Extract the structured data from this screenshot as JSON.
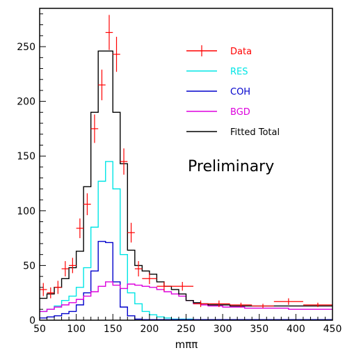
{
  "chart_data": {
    "type": "line",
    "xlabel": "mππ",
    "xlim": [
      50,
      450
    ],
    "ylim": [
      0,
      285
    ],
    "x_ticks": [
      50,
      100,
      150,
      200,
      250,
      300,
      350,
      400,
      450
    ],
    "y_ticks": [
      0,
      50,
      100,
      150,
      200,
      250
    ],
    "annotation": "Preliminary",
    "legend_position": "top-right",
    "bin_edges": [
      50,
      60,
      70,
      80,
      90,
      100,
      110,
      120,
      130,
      140,
      150,
      160,
      170,
      180,
      190,
      200,
      210,
      220,
      230,
      240,
      250,
      260,
      270,
      280,
      290,
      300,
      310,
      320,
      330,
      340,
      350,
      360,
      370,
      380,
      390,
      400,
      410,
      420,
      430,
      440,
      450
    ],
    "series": [
      {
        "name": "RES",
        "kind": "histogram",
        "color": "#00e5e5",
        "values": [
          8,
          10,
          13,
          18,
          22,
          30,
          48,
          85,
          127,
          145,
          120,
          60,
          25,
          15,
          8,
          5,
          3,
          2,
          1,
          1,
          1,
          0.5,
          0.5,
          0.5,
          0.5,
          0.5,
          0.5,
          0.5,
          0.5,
          0.5,
          0.5,
          0.5,
          0.5,
          0.5,
          0.5,
          0.5,
          0.5,
          0.5,
          0.5,
          0.5
        ]
      },
      {
        "name": "COH",
        "kind": "histogram",
        "color": "#0000cc",
        "values": [
          2,
          3,
          4,
          6,
          8,
          14,
          25,
          45,
          72,
          71,
          35,
          12,
          4,
          1,
          0.5,
          0.5,
          0.5,
          0.5,
          0.5,
          0.5,
          0.5,
          0.5,
          0.5,
          0.5,
          0.5,
          0.5,
          0.5,
          0.5,
          0.5,
          0.5,
          0.5,
          0.5,
          0.5,
          0.5,
          0.5,
          0.5,
          0.5,
          0.5,
          0.5,
          0.5
        ]
      },
      {
        "name": "BGD",
        "kind": "histogram",
        "color": "#dd00dd",
        "values": [
          8,
          10,
          12,
          14,
          16,
          19,
          22,
          26,
          31,
          35,
          32,
          29,
          33,
          32,
          31,
          30,
          28,
          26,
          24,
          22,
          18,
          15,
          14,
          13,
          13,
          12,
          12,
          12,
          11,
          11,
          11,
          11,
          11,
          11,
          10,
          10,
          10,
          10,
          10,
          10
        ]
      },
      {
        "name": "Fitted Total",
        "kind": "histogram",
        "color": "#000000",
        "values": [
          20,
          24,
          30,
          38,
          48,
          63,
          122,
          190,
          246,
          246,
          190,
          143,
          64,
          50,
          45,
          42,
          35,
          31,
          28,
          24,
          18,
          16,
          15,
          14,
          14,
          14,
          13,
          13,
          13,
          13,
          13,
          13,
          13,
          13,
          13,
          13,
          13,
          13,
          13,
          13
        ]
      },
      {
        "name": "Data",
        "kind": "points",
        "color": "#ff0000",
        "points": [
          {
            "x": 55,
            "y": 28,
            "xerr": 5,
            "yerr": 6
          },
          {
            "x": 65,
            "y": 25,
            "xerr": 5,
            "yerr": 5
          },
          {
            "x": 75,
            "y": 30,
            "xerr": 5,
            "yerr": 6
          },
          {
            "x": 85,
            "y": 47,
            "xerr": 5,
            "yerr": 7
          },
          {
            "x": 95,
            "y": 50,
            "xerr": 5,
            "yerr": 7
          },
          {
            "x": 105,
            "y": 84,
            "xerr": 5,
            "yerr": 9
          },
          {
            "x": 115,
            "y": 106,
            "xerr": 5,
            "yerr": 10
          },
          {
            "x": 125,
            "y": 175,
            "xerr": 5,
            "yerr": 13
          },
          {
            "x": 135,
            "y": 215,
            "xerr": 5,
            "yerr": 14
          },
          {
            "x": 145,
            "y": 263,
            "xerr": 5,
            "yerr": 16
          },
          {
            "x": 155,
            "y": 243,
            "xerr": 5,
            "yerr": 16
          },
          {
            "x": 165,
            "y": 145,
            "xerr": 5,
            "yerr": 12
          },
          {
            "x": 175,
            "y": 80,
            "xerr": 5,
            "yerr": 9
          },
          {
            "x": 185,
            "y": 47,
            "xerr": 5,
            "yerr": 7
          },
          {
            "x": 200,
            "y": 38,
            "xerr": 10,
            "yerr": 5
          },
          {
            "x": 220,
            "y": 31,
            "xerr": 10,
            "yerr": 4
          },
          {
            "x": 245,
            "y": 31,
            "xerr": 15,
            "yerr": 4
          },
          {
            "x": 270,
            "y": 15,
            "xerr": 10,
            "yerr": 3
          },
          {
            "x": 295,
            "y": 15,
            "xerr": 15,
            "yerr": 3
          },
          {
            "x": 325,
            "y": 14,
            "xerr": 15,
            "yerr": 2
          },
          {
            "x": 355,
            "y": 13,
            "xerr": 15,
            "yerr": 2
          },
          {
            "x": 390,
            "y": 17,
            "xerr": 20,
            "yerr": 3
          },
          {
            "x": 430,
            "y": 14,
            "xerr": 20,
            "yerr": 2
          }
        ]
      }
    ]
  }
}
